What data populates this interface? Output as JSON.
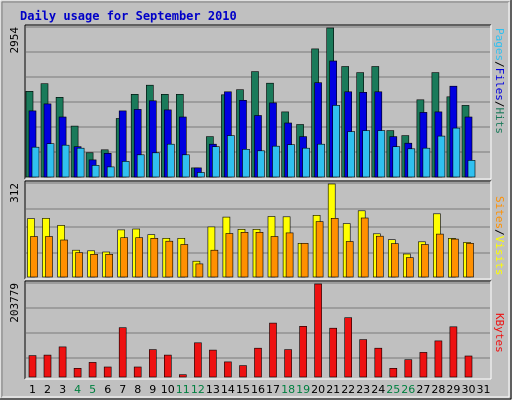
{
  "title": "Daily usage for September 2010",
  "colors": {
    "background": "#c0c0c0",
    "panel": "#c0c0c0",
    "grid": "#7a7a7a",
    "title": "#0000c8",
    "hits": "#1a7a5a",
    "files": "#0000e0",
    "pages": "#30c0f0",
    "visits": "#ffff00",
    "sites": "#ff9000",
    "kbytes": "#ee1111",
    "weekend_day": "#008040",
    "weekday": "#000000"
  },
  "legend": {
    "top": [
      {
        "text": "Pages",
        "color": "#30c0f0"
      },
      {
        "text": "/",
        "color": "#000000"
      },
      {
        "text": "Files",
        "color": "#0000e0"
      },
      {
        "text": "/",
        "color": "#000000"
      },
      {
        "text": "Hits",
        "color": "#1a7a5a"
      }
    ],
    "middle": [
      {
        "text": "Sites",
        "color": "#ff9000"
      },
      {
        "text": "/",
        "color": "#000000"
      },
      {
        "text": "Visits",
        "color": "#ffff00"
      }
    ],
    "bottom": [
      {
        "text": "KBytes",
        "color": "#ee1111"
      }
    ]
  },
  "chart_data": {
    "type": "bar",
    "title": "Daily usage for September 2010",
    "categories": [
      "1",
      "2",
      "3",
      "4",
      "5",
      "6",
      "7",
      "8",
      "9",
      "10",
      "11",
      "12",
      "13",
      "14",
      "15",
      "16",
      "17",
      "18",
      "19",
      "20",
      "21",
      "22",
      "23",
      "24",
      "25",
      "26",
      "27",
      "28",
      "29",
      "30",
      "31"
    ],
    "weekend_days": [
      "4",
      "5",
      "11",
      "12",
      "18",
      "19",
      "25",
      "26"
    ],
    "panels": [
      {
        "name": "hits_files_pages",
        "ymax_label": "2954",
        "ylim": [
          0,
          2954
        ],
        "series": [
          {
            "name": "Hits",
            "values": [
              1700,
              1850,
              1580,
              1010,
              480,
              540,
              1160,
              1640,
              1820,
              1640,
              1640,
              180,
              800,
              1630,
              1730,
              2090,
              1860,
              1290,
              1040,
              2540,
              2954,
              2190,
              2070,
              2190,
              920,
              820,
              1530,
              2070,
              1590,
              1420,
              0
            ]
          },
          {
            "name": "Files",
            "values": [
              1310,
              1450,
              1190,
              600,
              340,
              470,
              1310,
              1340,
              1510,
              1330,
              1190,
              180,
              650,
              1690,
              1520,
              1220,
              1470,
              1070,
              800,
              1870,
              2300,
              1690,
              1680,
              1690,
              800,
              670,
              1280,
              1290,
              1800,
              1190,
              0
            ]
          },
          {
            "name": "Pages",
            "values": [
              590,
              660,
              630,
              570,
              230,
              200,
              310,
              440,
              480,
              650,
              440,
              90,
              600,
              820,
              550,
              520,
              610,
              640,
              570,
              650,
              1420,
              900,
              920,
              920,
              600,
              560,
              570,
              810,
              970,
              330,
              0
            ]
          }
        ]
      },
      {
        "name": "visits_sites",
        "ymax_label": "312",
        "ylim": [
          0,
          312
        ],
        "series": [
          {
            "name": "Visits",
            "values": [
              196,
              197,
              173,
              90,
              88,
              84,
              158,
              161,
              142,
              130,
              130,
              53,
              168,
              201,
              160,
              160,
              203,
              202,
              113,
              207,
              312,
              179,
              222,
              145,
              125,
              77,
              118,
              212,
              130,
              116,
              0
            ]
          },
          {
            "name": "Sites",
            "values": [
              136,
              136,
              124,
              82,
              76,
              76,
              132,
              132,
              130,
              120,
              109,
              44,
              90,
              146,
              150,
              150,
              136,
              148,
              113,
              186,
              197,
              119,
              198,
              137,
              112,
              65,
              109,
              144,
              127,
              113,
              0
            ]
          }
        ]
      },
      {
        "name": "kbytes",
        "ymax_label": "203779",
        "ylim": [
          0,
          203779
        ],
        "series": [
          {
            "name": "KBytes",
            "values": [
              47000,
              48000,
              66000,
              19000,
              32000,
              22000,
              108000,
              22000,
              60000,
              48000,
              5000,
              75000,
              59000,
              33000,
              25000,
              63000,
              118000,
              60000,
              111000,
              203779,
              107000,
              130000,
              82000,
              63000,
              19000,
              38000,
              54000,
              79000,
              110000,
              46000,
              0
            ]
          }
        ]
      }
    ]
  }
}
